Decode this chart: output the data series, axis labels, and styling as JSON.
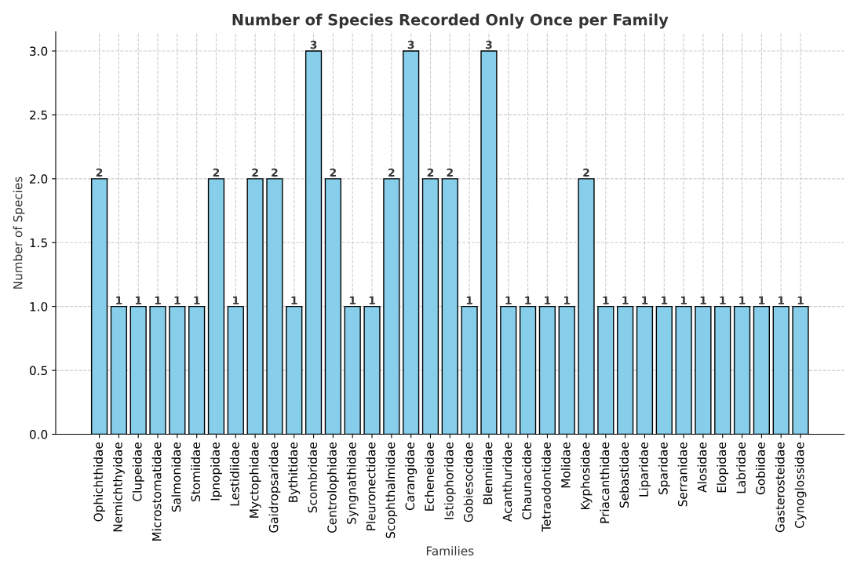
{
  "chart_data": {
    "type": "bar",
    "title": "Number of Species Recorded Only Once per Family",
    "xlabel": "Families",
    "ylabel": "Number of Species",
    "categories": [
      "Ophichthidae",
      "Nemichthyidae",
      "Clupeidae",
      "Microstomatidae",
      "Salmonidae",
      "Stomiidae",
      "Ipnopidae",
      "Lestidiidae",
      "Myctophidae",
      "Gaidropsaridae",
      "Bythitidae",
      "Scombridae",
      "Centrolophidae",
      "Syngnathidae",
      "Pleuronectidae",
      "Scophthalmidae",
      "Carangidae",
      "Echeneidae",
      "Istiophoridae",
      "Gobiesocidae",
      "Blenniidae",
      "Acanthuridae",
      "Chaunacidae",
      "Tetraodontidae",
      "Molidae",
      "Kyphosidae",
      "Priacanthidae",
      "Sebastidae",
      "Liparidae",
      "Sparidae",
      "Serranidae",
      "Alosidae",
      "Elopidae",
      "Labridae",
      "Gobiidae",
      "Gasterosteidae",
      "Cynoglossidae"
    ],
    "values": [
      2,
      1,
      1,
      1,
      1,
      1,
      2,
      1,
      2,
      2,
      1,
      3,
      2,
      1,
      1,
      2,
      3,
      2,
      2,
      1,
      3,
      1,
      1,
      1,
      1,
      2,
      1,
      1,
      1,
      1,
      1,
      1,
      1,
      1,
      1,
      1,
      1
    ],
    "color": "#87ceeb",
    "data_labels": true,
    "grid": true,
    "ylim": [
      0,
      3.15
    ],
    "yticks": [
      {
        "value": 0,
        "label": "0.0"
      },
      {
        "value": 0.5,
        "label": "0.5"
      },
      {
        "value": 1,
        "label": "1.0"
      },
      {
        "value": 1.5,
        "label": "1.5"
      },
      {
        "value": 2,
        "label": "2.0"
      },
      {
        "value": 2.5,
        "label": "2.5"
      },
      {
        "value": 3,
        "label": "3.0"
      }
    ]
  }
}
